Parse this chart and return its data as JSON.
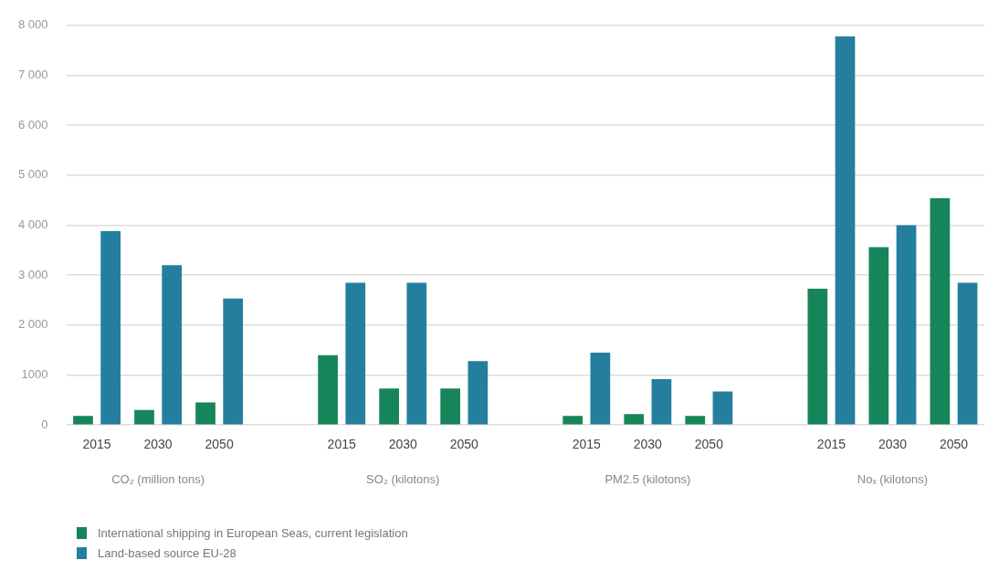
{
  "chart_data": {
    "type": "bar",
    "categories": [
      "2015",
      "2030",
      "2050",
      null,
      "2015",
      "2030",
      "2050",
      null,
      "2015",
      "2030",
      "2050",
      null,
      "2015",
      "2030",
      "2050"
    ],
    "series": [
      {
        "name": "International shipping in European Seas, current legislation",
        "color": "#17855a",
        "values": [
          180,
          300,
          450,
          null,
          1400,
          730,
          730,
          null,
          180,
          220,
          180,
          null,
          2730,
          3560,
          4540
        ]
      },
      {
        "name": "Land-based source EU-28",
        "color": "#247f9e",
        "values": [
          3880,
          3200,
          2530,
          null,
          2850,
          2850,
          1280,
          null,
          1450,
          920,
          670,
          null,
          7780,
          4000,
          2850
        ]
      }
    ],
    "ylim": [
      0,
      8000
    ],
    "yticks": [
      0,
      {
        "value": 1000,
        "label": "1000"
      },
      {
        "value": 2000,
        "label": "2 000"
      },
      {
        "value": 3000,
        "label": "3 000"
      },
      {
        "value": 4000,
        "label": "4 000"
      },
      {
        "value": 5000,
        "label": "5 000"
      },
      {
        "value": 6000,
        "label": "6 000"
      },
      {
        "value": 7000,
        "label": "7 000"
      },
      {
        "value": 8000,
        "label": "8 000"
      }
    ],
    "annotations": [
      "CO₂ (million tons)",
      "SO₂ (kilotons)",
      "PM2.5 (kilotons)",
      "Noₓ (kilotons)"
    ],
    "grid": "y",
    "legend": "bottom left"
  }
}
